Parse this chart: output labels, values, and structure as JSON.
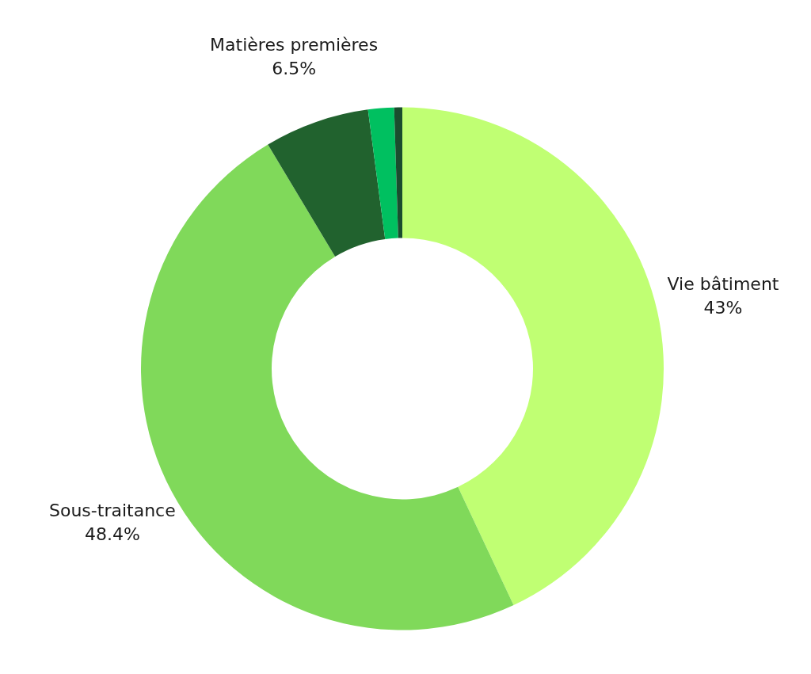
{
  "chart_data": {
    "type": "donut",
    "categories": [
      "Vie bâtiment",
      "Sous-traitance",
      "Matières premières",
      null,
      null
    ],
    "values": [
      43,
      48.4,
      6.5,
      1.6,
      0.5
    ],
    "colors": [
      "#c0ff73",
      "#80d95a",
      "#21622e",
      "#00c060",
      "#1a4d2e"
    ],
    "value_labels": [
      "43%",
      "48.4%",
      "6.5%",
      null,
      null
    ],
    "legend": false
  }
}
